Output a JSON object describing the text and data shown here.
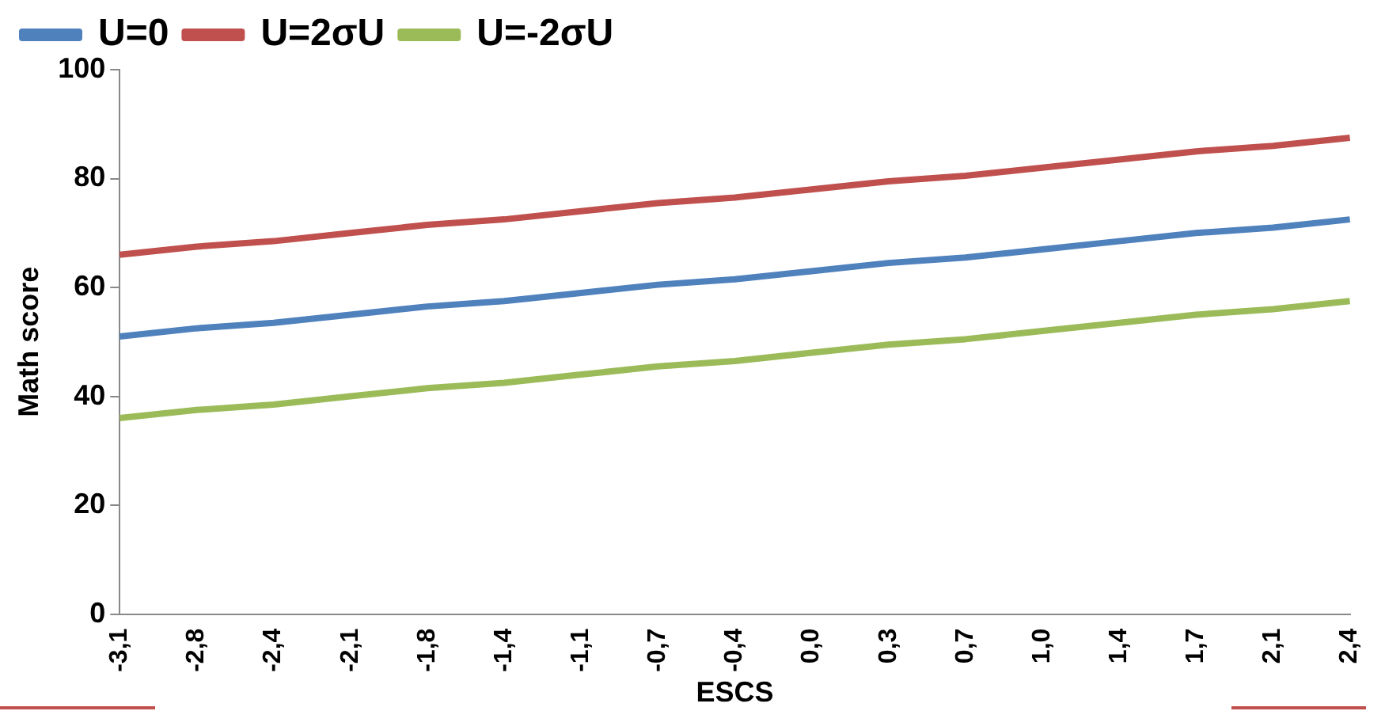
{
  "chart_data": {
    "type": "line",
    "xlabel": "ESCS",
    "ylabel": "Math score",
    "categories": [
      "-3,1",
      "-2,8",
      "-2,4",
      "-2,1",
      "-1,8",
      "-1,4",
      "-1,1",
      "-0,7",
      "-0,4",
      "0,0",
      "0,3",
      "0,7",
      "1,0",
      "1,4",
      "1,7",
      "2,1",
      "2,4"
    ],
    "series": [
      {
        "name": "U=0",
        "color": "#4f81bd",
        "values": [
          51,
          52.5,
          53.5,
          55,
          56.5,
          57.5,
          59,
          60.5,
          61.5,
          63,
          64.5,
          65.5,
          67,
          68.5,
          70,
          71,
          72.5
        ]
      },
      {
        "name": "U=2σU",
        "color": "#c0504d",
        "values": [
          66,
          67.5,
          68.5,
          70,
          71.5,
          72.5,
          74,
          75.5,
          76.5,
          78,
          79.5,
          80.5,
          82,
          83.5,
          85,
          86,
          87.5
        ]
      },
      {
        "name": "U=-2σU",
        "color": "#9bbb59",
        "values": [
          36,
          37.5,
          38.5,
          40,
          41.5,
          42.5,
          44,
          45.5,
          46.5,
          48,
          49.5,
          50.5,
          52,
          53.5,
          55,
          56,
          57.5
        ]
      }
    ],
    "ylim": [
      0,
      100
    ],
    "yticks": [
      0,
      20,
      40,
      60,
      80,
      100
    ],
    "grid": false,
    "legend": "top",
    "marker": "none",
    "line_style": "solid"
  }
}
